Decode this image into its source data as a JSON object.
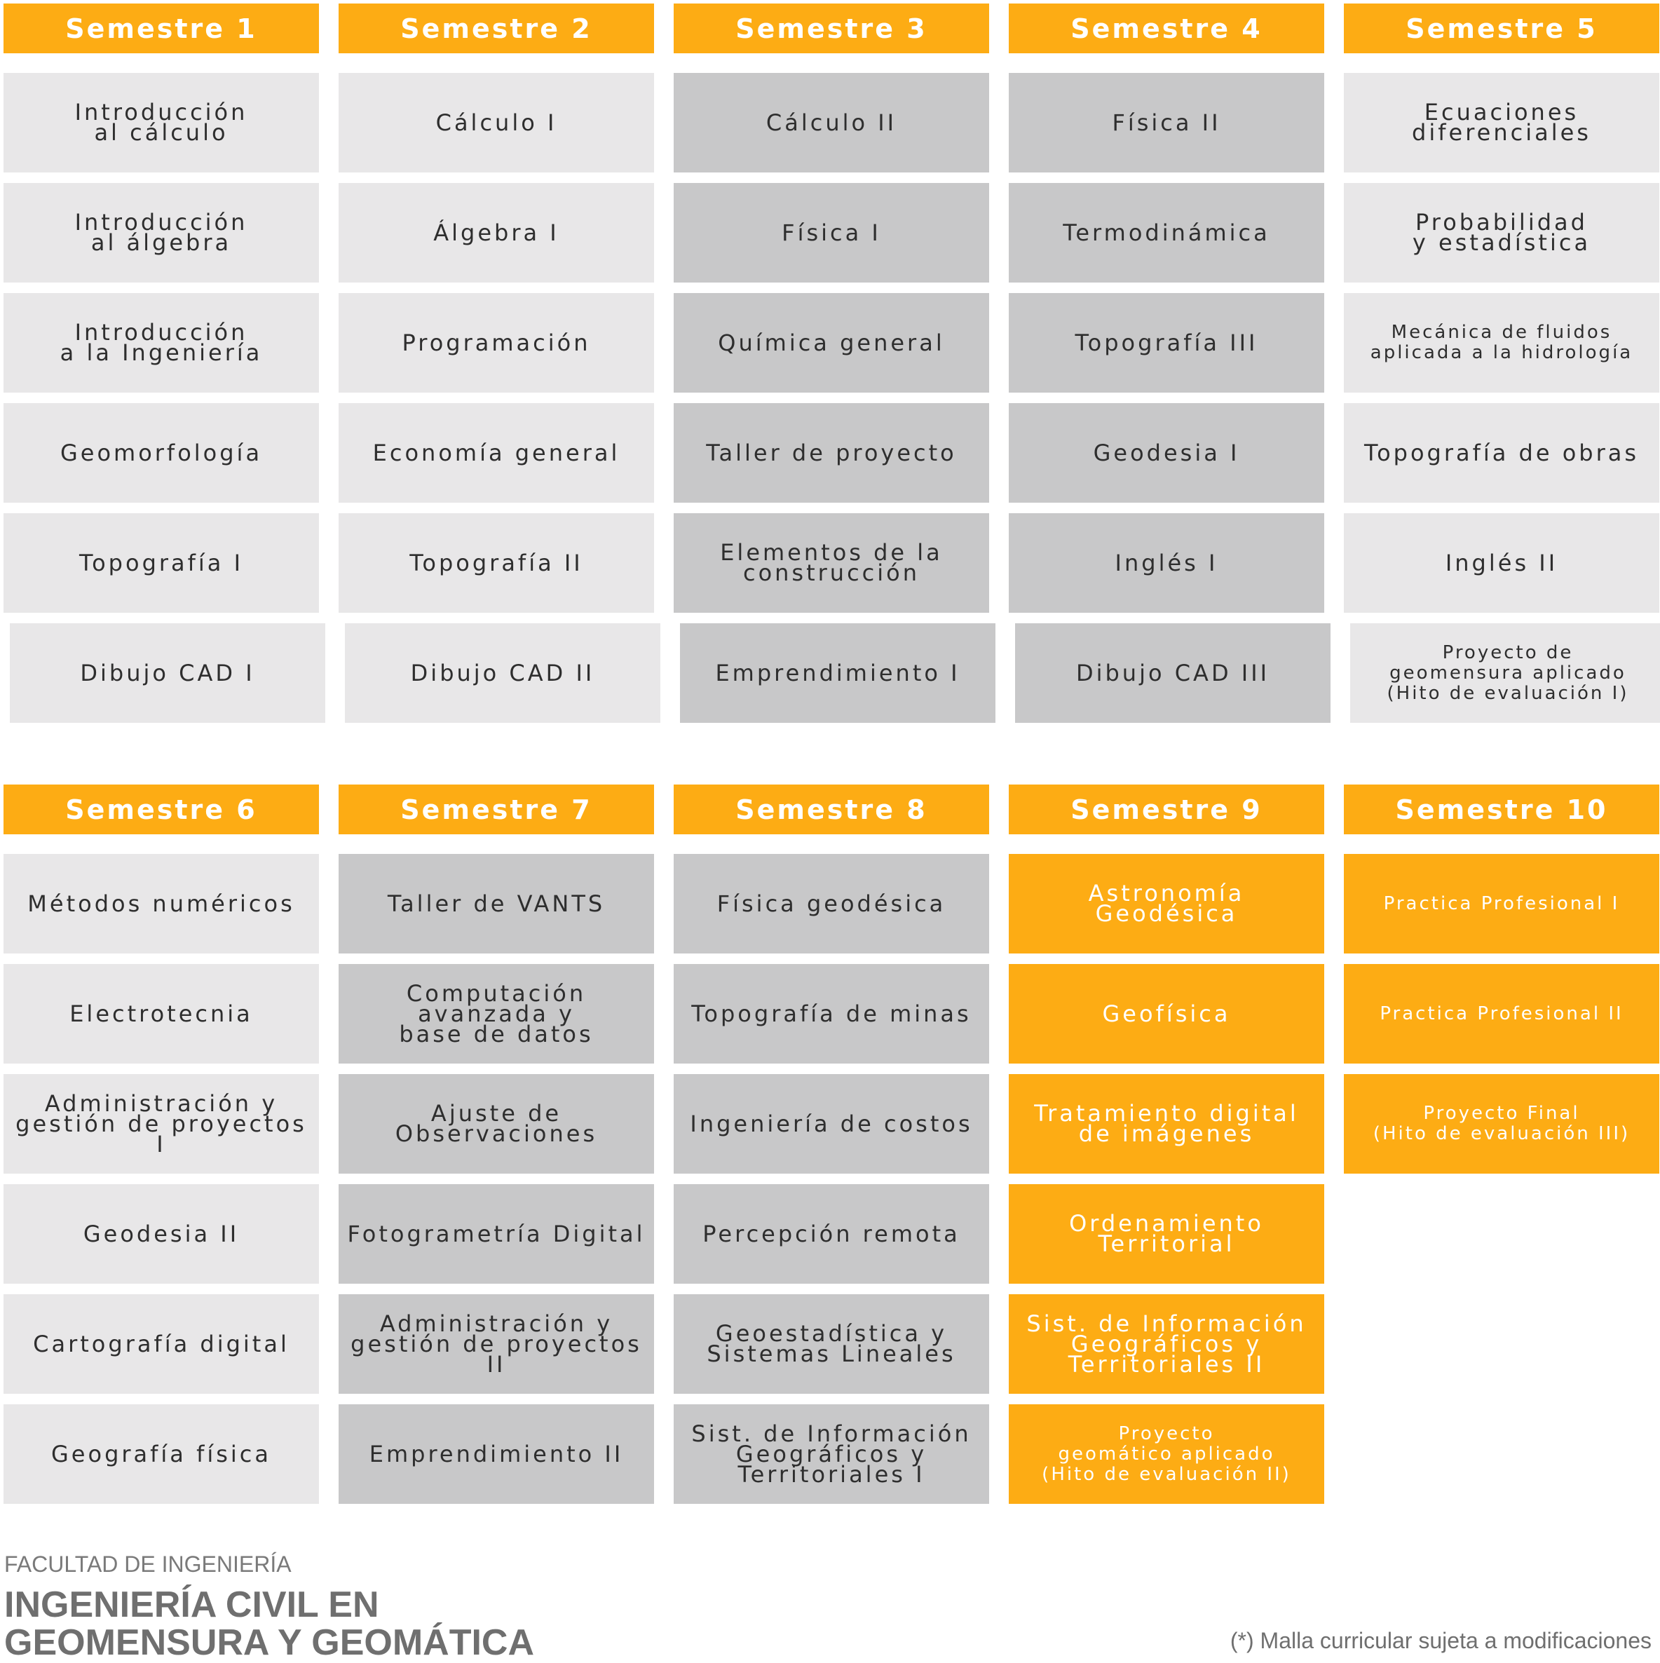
{
  "colors": {
    "orange": "#fdac14",
    "light": "#e8e7e8",
    "dark": "#c8c8c9",
    "text": "#2e2e2e"
  },
  "semesters": [
    {
      "label": "Semestre 1",
      "courses": [
        {
          "name": "Introducción\nal cálculo",
          "tone": "light"
        },
        {
          "name": "Introducción\nal álgebra",
          "tone": "light"
        },
        {
          "name": "Introducción\na la Ingeniería",
          "tone": "light"
        },
        {
          "name": "Geomorfología",
          "tone": "light"
        },
        {
          "name": "Topografía I",
          "tone": "light"
        },
        {
          "name": "Dibujo CAD I",
          "tone": "light"
        }
      ]
    },
    {
      "label": "Semestre 2",
      "courses": [
        {
          "name": "Cálculo I",
          "tone": "light"
        },
        {
          "name": "Álgebra I",
          "tone": "light"
        },
        {
          "name": "Programación",
          "tone": "light"
        },
        {
          "name": "Economía general",
          "tone": "light"
        },
        {
          "name": "Topografía II",
          "tone": "light"
        },
        {
          "name": "Dibujo CAD II",
          "tone": "light"
        }
      ]
    },
    {
      "label": "Semestre 3",
      "courses": [
        {
          "name": "Cálculo II",
          "tone": "dark"
        },
        {
          "name": "Física  I",
          "tone": "dark"
        },
        {
          "name": "Química general",
          "tone": "dark"
        },
        {
          "name": "Taller de proyecto",
          "tone": "dark"
        },
        {
          "name": "Elementos de la\nconstrucción",
          "tone": "dark"
        },
        {
          "name": "Emprendimiento I",
          "tone": "dark"
        }
      ]
    },
    {
      "label": "Semestre 4",
      "courses": [
        {
          "name": "Física II",
          "tone": "dark"
        },
        {
          "name": "Termodinámica",
          "tone": "dark"
        },
        {
          "name": "Topografía III",
          "tone": "dark"
        },
        {
          "name": "Geodesia I",
          "tone": "dark"
        },
        {
          "name": "Inglés I",
          "tone": "dark"
        },
        {
          "name": "Dibujo CAD III",
          "tone": "dark"
        }
      ]
    },
    {
      "label": "Semestre 5",
      "courses": [
        {
          "name": "Ecuaciones\ndiferenciales",
          "tone": "light"
        },
        {
          "name": "Probabilidad\ny estadística",
          "tone": "light"
        },
        {
          "name": "Mecánica de fluidos\naplicada a la hidrología",
          "tone": "light",
          "small": true
        },
        {
          "name": "Topografía de obras",
          "tone": "light"
        },
        {
          "name": "Inglés II",
          "tone": "light"
        },
        {
          "name": "Proyecto de\ngeomensura aplicado\n(Hito de evaluación I)",
          "tone": "light",
          "small": true
        }
      ]
    },
    {
      "label": "Semestre 6",
      "courses": [
        {
          "name": "Métodos numéricos",
          "tone": "light"
        },
        {
          "name": "Electrotecnia",
          "tone": "light"
        },
        {
          "name": "Administración y\ngestión de proyectos I",
          "tone": "light"
        },
        {
          "name": "Geodesia II",
          "tone": "light"
        },
        {
          "name": "Cartografía digital",
          "tone": "light"
        },
        {
          "name": "Geografía física",
          "tone": "light"
        }
      ]
    },
    {
      "label": "Semestre 7",
      "courses": [
        {
          "name": "Taller de VANTS",
          "tone": "dark"
        },
        {
          "name": "Computación\navanzada y\nbase de datos",
          "tone": "dark"
        },
        {
          "name": "Ajuste de\nObservaciones",
          "tone": "dark"
        },
        {
          "name": "Fotogrametría Digital",
          "tone": "dark"
        },
        {
          "name": "Administración y\ngestión de proyectos II",
          "tone": "dark"
        },
        {
          "name": "Emprendimiento II",
          "tone": "dark"
        }
      ]
    },
    {
      "label": "Semestre 8",
      "courses": [
        {
          "name": "Física geodésica",
          "tone": "dark"
        },
        {
          "name": "Topografía de minas",
          "tone": "dark"
        },
        {
          "name": "Ingeniería de costos",
          "tone": "dark"
        },
        {
          "name": "Percepción remota",
          "tone": "dark"
        },
        {
          "name": "Geoestadística y\nSistemas Lineales",
          "tone": "dark"
        },
        {
          "name": "Sist. de Información\nGeográficos y\nTerritoriales I",
          "tone": "dark"
        }
      ]
    },
    {
      "label": "Semestre 9",
      "courses": [
        {
          "name": "Astronomía\nGeodésica",
          "tone": "orange"
        },
        {
          "name": "Geofísica",
          "tone": "orange"
        },
        {
          "name": "Tratamiento digital\nde imágenes",
          "tone": "orange"
        },
        {
          "name": "Ordenamiento\nTerritorial",
          "tone": "orange"
        },
        {
          "name": "Sist. de Información\nGeográficos y\nTerritoriales II",
          "tone": "orange"
        },
        {
          "name": "Proyecto\ngeomático aplicado\n(Hito de evaluación II)",
          "tone": "orange",
          "small": true
        }
      ]
    },
    {
      "label": "Semestre 10",
      "courses": [
        {
          "name": "Practica Profesional I",
          "tone": "orange",
          "small": true
        },
        {
          "name": "Practica Profesional II",
          "tone": "orange",
          "small": true
        },
        {
          "name": "Proyecto Final\n(Hito de evaluación III)",
          "tone": "orange",
          "small": true
        }
      ]
    }
  ],
  "footer": {
    "faculty": "FACULTAD DE INGENIERÍA",
    "program": "INGENIERÍA CIVIL EN\nGEOMENSURA Y GEOMÁTICA",
    "note": "(*) Malla curricular sujeta a modificaciones"
  }
}
